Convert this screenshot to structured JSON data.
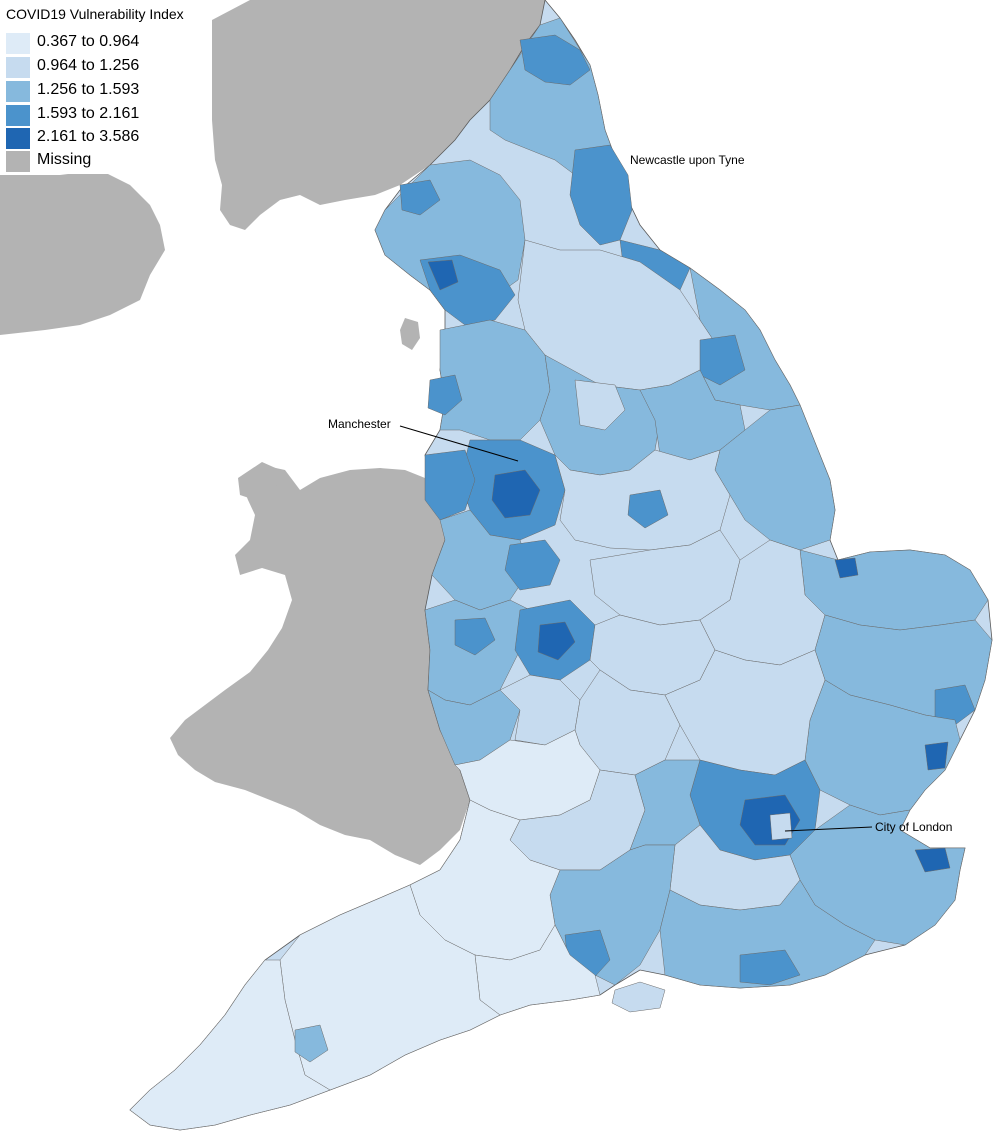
{
  "legend": {
    "title": "COVID19 Vulnerability Index",
    "classes": [
      {
        "label": "0.367 to 0.964",
        "color": "#deebf7"
      },
      {
        "label": "0.964 to 1.256",
        "color": "#c6dbef"
      },
      {
        "label": "1.256 to 1.593",
        "color": "#86b9dd"
      },
      {
        "label": "1.593 to 2.161",
        "color": "#4b93cc"
      },
      {
        "label": "2.161 to 3.586",
        "color": "#1f66b2"
      },
      {
        "label": "Missing",
        "color": "#b3b3b3"
      }
    ]
  },
  "places": {
    "newcastle": "Newcastle upon Tyne",
    "manchester": "Manchester",
    "london": "City of London"
  },
  "colors": {
    "land_missing": "#b3b3b3",
    "boundary": "#5a5a5a",
    "background": "#ffffff"
  }
}
